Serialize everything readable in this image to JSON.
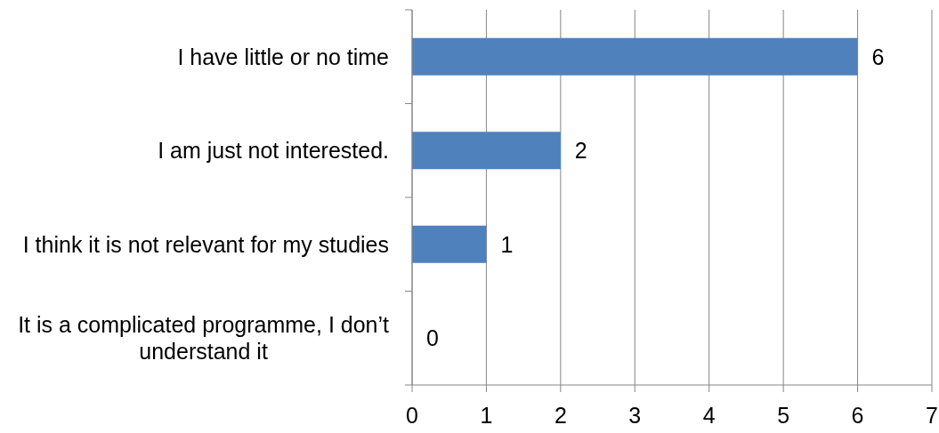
{
  "chart_data": {
    "type": "bar",
    "orientation": "horizontal",
    "categories": [
      "I have little or no time",
      "I am just not interested.",
      "I think it is not relevant for my studies",
      "It is a complicated programme, I don’t understand it"
    ],
    "values": [
      6,
      2,
      1,
      0
    ],
    "color": "#4f81bd",
    "xlim": [
      0,
      7
    ],
    "xticks": [
      0,
      1,
      2,
      3,
      4,
      5,
      6,
      7
    ],
    "grid": "x",
    "data_labels": true
  }
}
